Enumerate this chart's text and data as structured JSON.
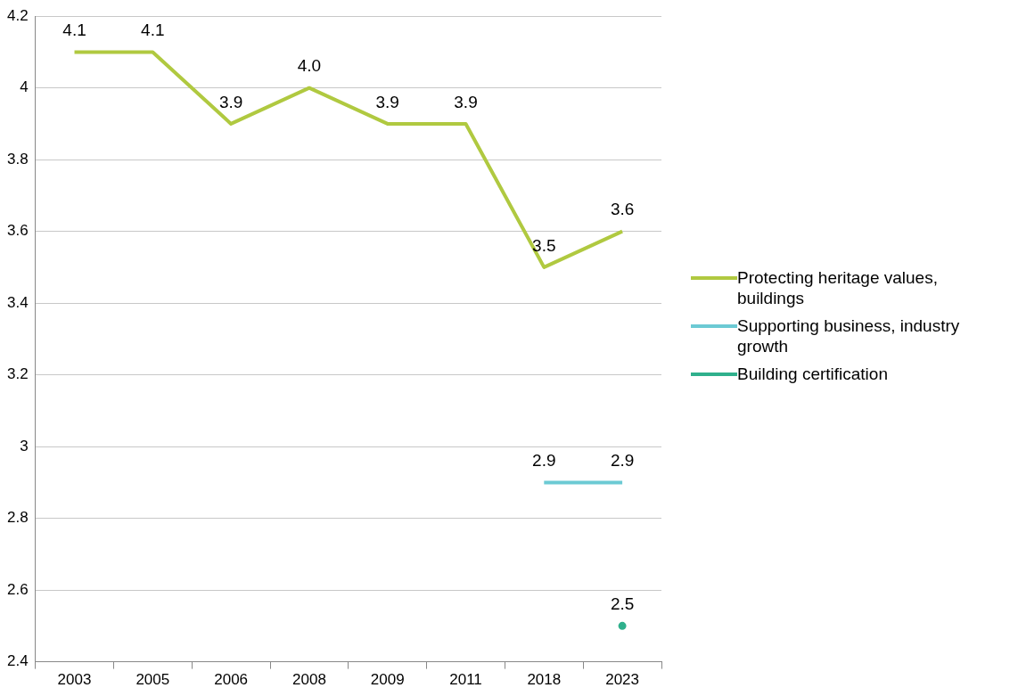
{
  "chart_data": {
    "type": "line",
    "categories": [
      "2003",
      "2005",
      "2006",
      "2008",
      "2009",
      "2011",
      "2018",
      "2023"
    ],
    "series": [
      {
        "name": "Protecting heritage values, buildings",
        "color": "#b0c940",
        "values": [
          4.1,
          4.1,
          3.9,
          4.0,
          3.9,
          3.9,
          3.5,
          3.6
        ],
        "value_labels": [
          "4.1",
          "4.1",
          "3.9",
          "4.0",
          "3.9",
          "3.9",
          "3.5",
          "3.6"
        ]
      },
      {
        "name": "Supporting business, industry growth",
        "color": "#6ccad4",
        "values": [
          null,
          null,
          null,
          null,
          null,
          null,
          2.9,
          2.9
        ],
        "value_labels": [
          null,
          null,
          null,
          null,
          null,
          null,
          "2.9",
          "2.9"
        ]
      },
      {
        "name": "Building certification",
        "color": "#2fb08c",
        "marker": "circle",
        "values": [
          null,
          null,
          null,
          null,
          null,
          null,
          null,
          2.5
        ],
        "value_labels": [
          null,
          null,
          null,
          null,
          null,
          null,
          null,
          "2.5"
        ]
      }
    ],
    "ylim": [
      2.4,
      4.2
    ],
    "yticks": [
      2.4,
      2.6,
      2.8,
      3,
      3.2,
      3.4,
      3.6,
      3.8,
      4,
      4.2
    ],
    "grid": "y",
    "legend": "right",
    "line_style": "solid"
  }
}
